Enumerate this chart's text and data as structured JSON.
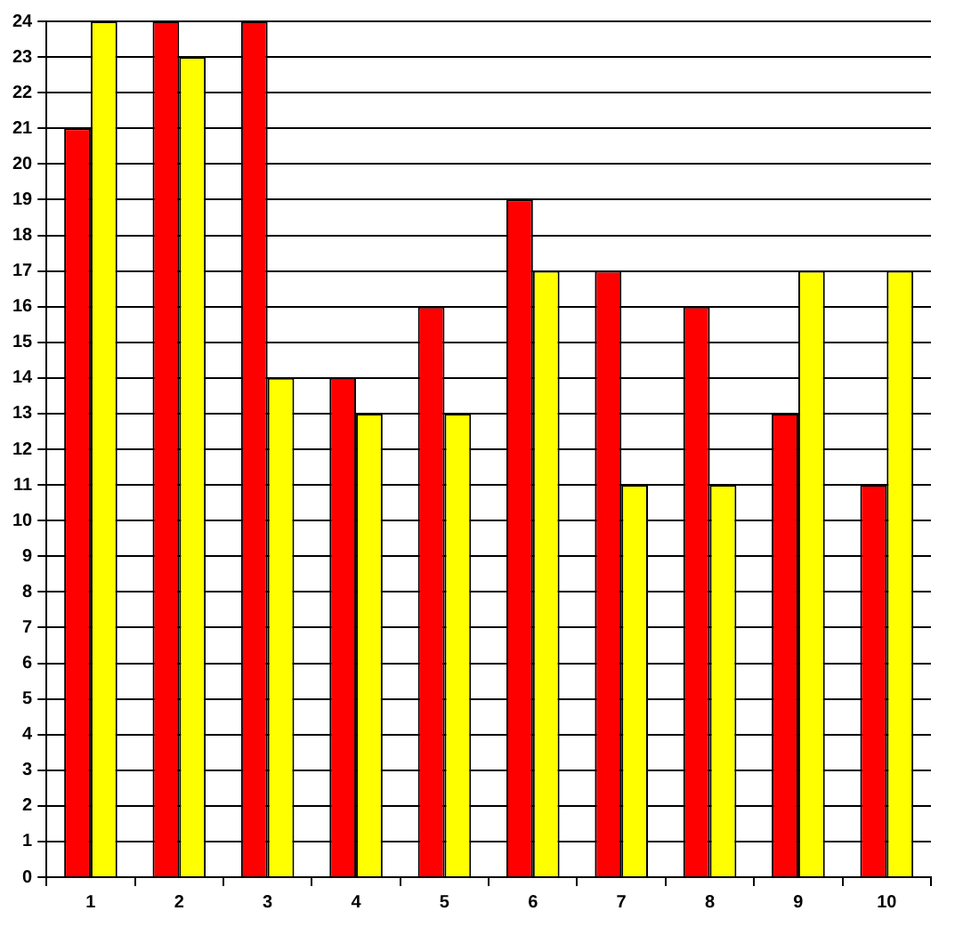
{
  "chart_data": {
    "type": "bar",
    "categories": [
      "1",
      "2",
      "3",
      "4",
      "5",
      "6",
      "7",
      "8",
      "9",
      "10"
    ],
    "series": [
      {
        "color": "#ff0000",
        "values": [
          21,
          24,
          24,
          14,
          16,
          19,
          17,
          16,
          13,
          11
        ]
      },
      {
        "color": "#ffff00",
        "values": [
          24,
          23,
          14,
          13,
          13,
          17,
          11,
          11,
          17,
          17
        ]
      }
    ],
    "ylim": [
      0,
      24
    ],
    "yticks": [
      0,
      1,
      2,
      3,
      4,
      5,
      6,
      7,
      8,
      9,
      10,
      11,
      12,
      13,
      14,
      15,
      16,
      17,
      18,
      19,
      20,
      21,
      22,
      23,
      24
    ],
    "grid": "y",
    "legend": false
  }
}
